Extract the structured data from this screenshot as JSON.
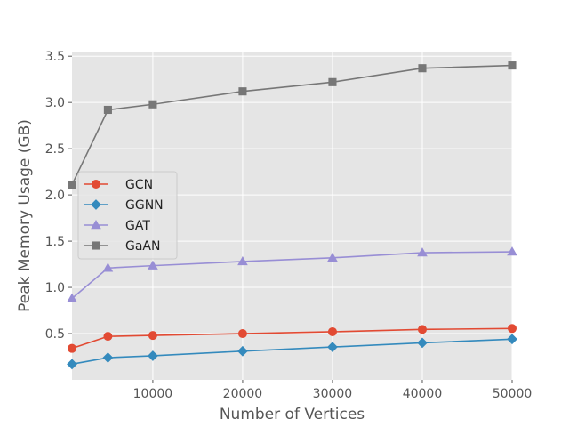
{
  "chart_data": {
    "type": "line",
    "title": "",
    "xlabel": "Number of Vertices",
    "ylabel": "Peak Memory Usage (GB)",
    "xlim": [
      1000,
      50000
    ],
    "ylim": [
      0.0,
      3.55
    ],
    "xticks": [
      10000,
      20000,
      30000,
      40000,
      50000
    ],
    "xtick_labels": [
      "10000",
      "20000",
      "30000",
      "40000",
      "50000"
    ],
    "yticks": [
      0.5,
      1.0,
      1.5,
      2.0,
      2.5,
      3.0,
      3.5
    ],
    "ytick_labels": [
      "0.5",
      "1.0",
      "1.5",
      "2.0",
      "2.5",
      "3.0",
      "3.5"
    ],
    "grid": true,
    "legend_position": "center-left",
    "x": [
      1000,
      5000,
      10000,
      20000,
      30000,
      40000,
      50000
    ],
    "series": [
      {
        "name": "GCN",
        "color": "#E24A33",
        "marker": "circle",
        "values": [
          0.34,
          0.47,
          0.48,
          0.5,
          0.52,
          0.545,
          0.555
        ]
      },
      {
        "name": "GGNN",
        "color": "#348ABD",
        "marker": "diamond",
        "values": [
          0.17,
          0.24,
          0.26,
          0.31,
          0.355,
          0.4,
          0.44
        ]
      },
      {
        "name": "GAT",
        "color": "#988ED5",
        "marker": "triangle",
        "values": [
          0.88,
          1.21,
          1.235,
          1.28,
          1.32,
          1.375,
          1.385
        ]
      },
      {
        "name": "GaAN",
        "color": "#777777",
        "marker": "square",
        "values": [
          2.11,
          2.92,
          2.98,
          3.12,
          3.22,
          3.37,
          3.4
        ]
      }
    ]
  }
}
